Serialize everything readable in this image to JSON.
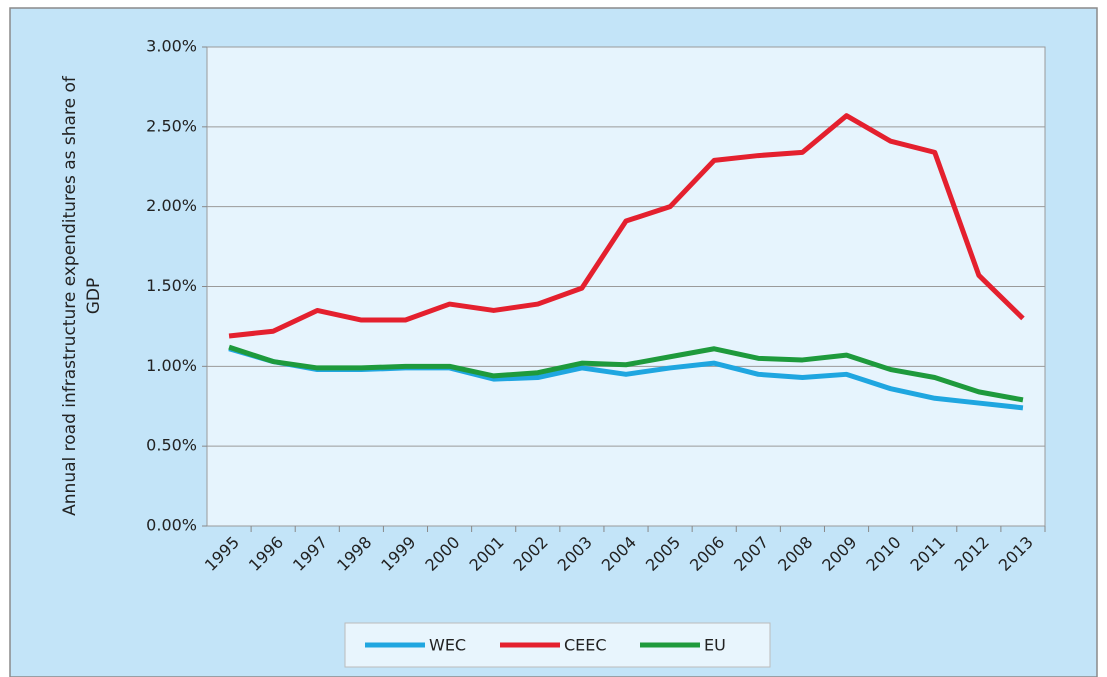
{
  "chart_data": {
    "type": "line",
    "y_label": "Annual road infrastructure expenditures as share of GDP",
    "categories": [
      "1995",
      "1996",
      "1997",
      "1998",
      "1999",
      "2000",
      "2001",
      "2002",
      "2003",
      "2004",
      "2005",
      "2006",
      "2007",
      "2008",
      "2009",
      "2010",
      "2011",
      "2012",
      "2013"
    ],
    "series": [
      {
        "name": "WEC",
        "color": "#1fa6e0",
        "values": [
          1.11,
          1.03,
          0.98,
          0.98,
          0.99,
          0.99,
          0.92,
          0.93,
          0.99,
          0.95,
          0.99,
          1.02,
          0.95,
          0.93,
          0.95,
          0.86,
          0.8,
          0.77,
          0.74
        ]
      },
      {
        "name": "CEEC",
        "color": "#e4202e",
        "values": [
          1.19,
          1.22,
          1.35,
          1.29,
          1.29,
          1.39,
          1.35,
          1.39,
          1.49,
          1.91,
          2.0,
          2.29,
          2.32,
          2.34,
          2.57,
          2.41,
          2.34,
          1.57,
          1.3
        ]
      },
      {
        "name": "EU",
        "color": "#1e9a3c",
        "values": [
          1.12,
          1.03,
          0.99,
          0.99,
          1.0,
          1.0,
          0.94,
          0.96,
          1.02,
          1.01,
          1.06,
          1.11,
          1.05,
          1.04,
          1.07,
          0.98,
          0.93,
          0.84,
          0.79
        ]
      }
    ],
    "ylim": [
      0,
      3
    ],
    "yticks": [
      {
        "value": 0,
        "label": "0.00%"
      },
      {
        "value": 0.5,
        "label": "0.50%"
      },
      {
        "value": 1,
        "label": "1.00%"
      },
      {
        "value": 1.5,
        "label": "1.50%"
      },
      {
        "value": 2,
        "label": "2.00%"
      },
      {
        "value": 2.5,
        "label": "2.50%"
      },
      {
        "value": 3,
        "label": "3.00%"
      }
    ],
    "grid": true,
    "legend": "bottom"
  }
}
